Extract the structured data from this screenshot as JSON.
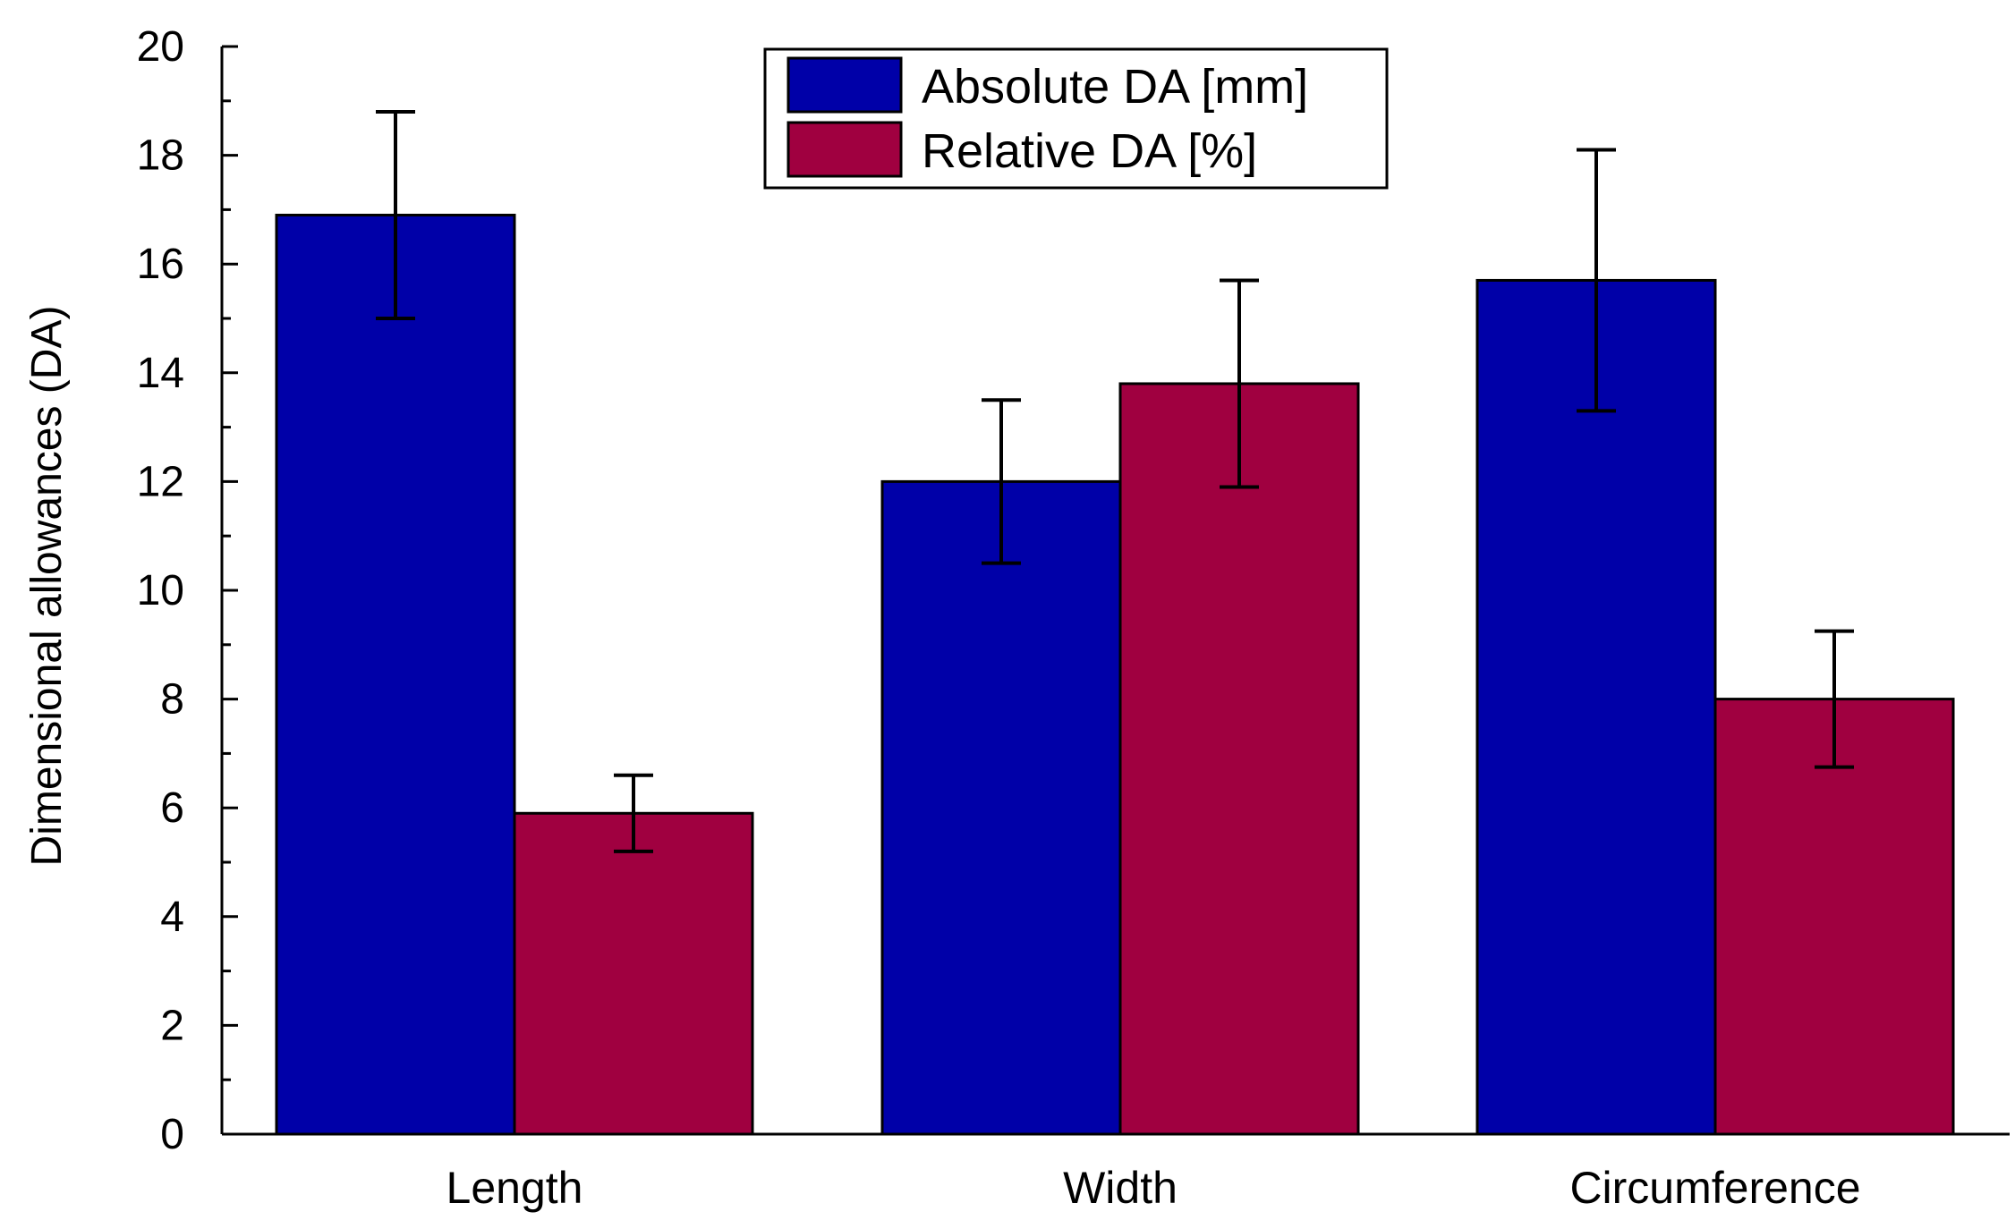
{
  "chart_data": {
    "type": "bar",
    "categories": [
      "Length",
      "Width",
      "Circumference"
    ],
    "series": [
      {
        "name": "Absolute DA [mm]",
        "color": "#0000a8",
        "values": [
          16.9,
          12.0,
          15.7
        ],
        "errors": [
          1.9,
          1.5,
          2.4
        ]
      },
      {
        "name": "Relative DA [%]",
        "color": "#a00040",
        "values": [
          5.9,
          13.8,
          8.0
        ],
        "errors": [
          0.7,
          1.9,
          1.25
        ]
      }
    ],
    "title": "",
    "xlabel": "",
    "ylabel": "Dimensional allowances (DA)",
    "ylim": [
      0,
      20
    ],
    "yticks": [
      0,
      2,
      4,
      6,
      8,
      10,
      12,
      14,
      16,
      18,
      20
    ],
    "grid": false,
    "legend": "top-center"
  }
}
